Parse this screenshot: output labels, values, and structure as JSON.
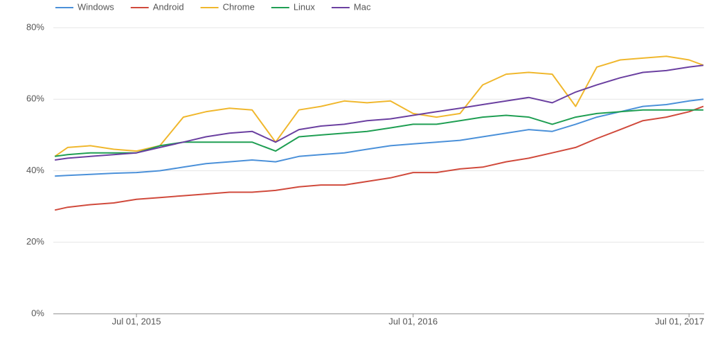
{
  "chart_data": {
    "type": "line",
    "x": [
      "2015-03-15",
      "2015-04-01",
      "2015-05-01",
      "2015-06-01",
      "2015-07-01",
      "2015-08-01",
      "2015-09-01",
      "2015-10-01",
      "2015-11-01",
      "2015-12-01",
      "2016-01-01",
      "2016-02-01",
      "2016-03-01",
      "2016-04-01",
      "2016-05-01",
      "2016-06-01",
      "2016-07-01",
      "2016-08-01",
      "2016-09-01",
      "2016-10-01",
      "2016-11-01",
      "2016-12-01",
      "2017-01-01",
      "2017-02-01",
      "2017-03-01",
      "2017-04-01",
      "2017-05-01",
      "2017-06-01",
      "2017-07-01",
      "2017-07-20"
    ],
    "series": [
      {
        "name": "Windows",
        "color": "#4a90d9",
        "values": [
          38.5,
          38.7,
          39,
          39.3,
          39.5,
          40,
          41,
          42,
          42.5,
          43,
          42.5,
          44,
          44.5,
          45,
          46,
          47,
          47.5,
          48,
          48.5,
          49.5,
          50.5,
          51.5,
          51,
          53,
          55,
          56.5,
          58,
          58.5,
          59.5,
          60
        ]
      },
      {
        "name": "Android",
        "color": "#d0493b",
        "values": [
          29,
          29.8,
          30.5,
          31,
          32,
          32.5,
          33,
          33.5,
          34,
          34,
          34.5,
          35.5,
          36,
          36,
          37,
          38,
          39.5,
          39.5,
          40.5,
          41,
          42.5,
          43.5,
          45,
          46.5,
          49,
          51.5,
          54,
          55,
          56.5,
          58
        ]
      },
      {
        "name": "Chrome",
        "color": "#f0b72c",
        "values": [
          44,
          46.5,
          47,
          46,
          45.5,
          47,
          55,
          56.5,
          57.5,
          57,
          48,
          57,
          58,
          59.5,
          59,
          59.5,
          56,
          55,
          56,
          64,
          67,
          67.5,
          67,
          58,
          69,
          71,
          71.5,
          72,
          71,
          69.5
        ]
      },
      {
        "name": "Linux",
        "color": "#1e9e52",
        "values": [
          44,
          44.5,
          45,
          45,
          45,
          47,
          48,
          48,
          48,
          48,
          45.5,
          49.5,
          50,
          50.5,
          51,
          52,
          53,
          53,
          54,
          55,
          55.5,
          55,
          53,
          55,
          56,
          56.5,
          57,
          57,
          57,
          57
        ]
      },
      {
        "name": "Mac",
        "color": "#6a3fa0",
        "values": [
          43,
          43.5,
          44,
          44.5,
          45,
          46.5,
          48,
          49.5,
          50.5,
          51,
          48,
          51.5,
          52.5,
          53,
          54,
          54.5,
          55.5,
          56.5,
          57.5,
          58.5,
          59.5,
          60.5,
          59,
          62,
          64,
          66,
          67.5,
          68,
          69,
          69.5
        ]
      }
    ],
    "xlim": [
      "2015-03-13",
      "2017-07-21"
    ],
    "xticks": [
      {
        "value": "2015-07-01",
        "label": "Jul 01, 2015"
      },
      {
        "value": "2016-07-01",
        "label": "Jul 01, 2016"
      },
      {
        "value": "2017-07-01",
        "label": "Jul 01, 2017"
      }
    ],
    "ylim": [
      0,
      80
    ],
    "yticks": [
      {
        "value": 0,
        "label": "0%"
      },
      {
        "value": 20,
        "label": "20%"
      },
      {
        "value": 40,
        "label": "40%"
      },
      {
        "value": 60,
        "label": "60%"
      },
      {
        "value": 80,
        "label": "80%"
      }
    ],
    "grid": true,
    "legend": "top"
  }
}
